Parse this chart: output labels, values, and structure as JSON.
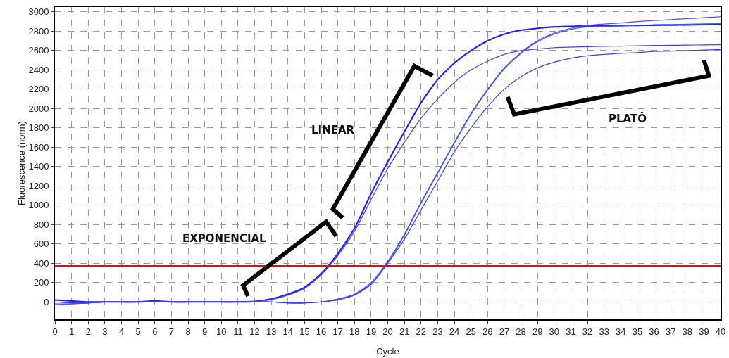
{
  "chart_data": {
    "type": "line",
    "xlabel": "Cycle",
    "ylabel": "Fluorescence (norm)",
    "x": [
      0,
      1,
      2,
      3,
      4,
      5,
      6,
      7,
      8,
      9,
      10,
      11,
      12,
      13,
      14,
      15,
      16,
      17,
      18,
      19,
      20,
      21,
      22,
      23,
      24,
      25,
      26,
      27,
      28,
      29,
      30,
      31,
      32,
      33,
      34,
      35,
      36,
      37,
      38,
      39,
      40
    ],
    "series": [
      {
        "color": "#1f1fff",
        "values": [
          20,
          10,
          0,
          0,
          0,
          0,
          10,
          0,
          0,
          0,
          0,
          0,
          5,
          30,
          80,
          150,
          290,
          500,
          760,
          1120,
          1450,
          1760,
          2060,
          2300,
          2470,
          2600,
          2700,
          2770,
          2810,
          2830,
          2845,
          2850,
          2855,
          2855,
          2858,
          2860,
          2862,
          2864,
          2866,
          2868,
          2870
        ]
      },
      {
        "color": "#4b3cf0",
        "values": [
          0,
          -10,
          -10,
          0,
          0,
          0,
          0,
          0,
          0,
          0,
          0,
          0,
          5,
          25,
          70,
          140,
          280,
          480,
          730,
          1060,
          1380,
          1650,
          1900,
          2100,
          2270,
          2400,
          2490,
          2560,
          2600,
          2615,
          2630,
          2635,
          2640,
          2643,
          2646,
          2650,
          2652,
          2654,
          2656,
          2658,
          2660
        ]
      },
      {
        "color": "#6a3de8",
        "values": [
          -20,
          -20,
          -10,
          0,
          0,
          0,
          0,
          0,
          0,
          0,
          0,
          0,
          0,
          0,
          -10,
          -10,
          0,
          30,
          80,
          200,
          420,
          700,
          1030,
          1340,
          1650,
          1950,
          2200,
          2420,
          2580,
          2700,
          2780,
          2830,
          2860,
          2875,
          2885,
          2900,
          2910,
          2920,
          2930,
          2940,
          2950
        ]
      },
      {
        "color": "#2b5cff",
        "values": [
          -30,
          -20,
          -10,
          0,
          0,
          0,
          0,
          0,
          0,
          0,
          0,
          0,
          0,
          0,
          -10,
          -10,
          0,
          25,
          75,
          190,
          410,
          690,
          1020,
          1330,
          1640,
          1940,
          2190,
          2410,
          2570,
          2690,
          2770,
          2820,
          2845,
          2850,
          2855,
          2860,
          2865,
          2868,
          2872,
          2876,
          2880
        ]
      },
      {
        "color": "#3a3aff",
        "values": [
          0,
          -10,
          -10,
          0,
          0,
          0,
          0,
          0,
          0,
          0,
          0,
          0,
          0,
          0,
          -10,
          -10,
          0,
          20,
          70,
          180,
          400,
          650,
          950,
          1250,
          1550,
          1800,
          2020,
          2200,
          2330,
          2420,
          2480,
          2520,
          2545,
          2560,
          2570,
          2578,
          2590,
          2595,
          2600,
          2605,
          2610
        ]
      }
    ],
    "ref_lines": [
      {
        "axis": "y",
        "value": 370,
        "color": "#ff0000"
      }
    ],
    "annotations": [
      "EXPONENCIAL",
      "LINEAR",
      "PLATÔ"
    ],
    "xlim": [
      0,
      40
    ],
    "xticks": [
      0,
      1,
      2,
      3,
      4,
      5,
      6,
      7,
      8,
      9,
      10,
      11,
      12,
      13,
      14,
      15,
      16,
      17,
      18,
      19,
      20,
      21,
      22,
      23,
      24,
      25,
      26,
      27,
      28,
      29,
      30,
      31,
      32,
      33,
      34,
      35,
      36,
      37,
      38,
      39,
      40
    ],
    "ylim": [
      -180,
      3050
    ],
    "yticks": [
      0,
      200,
      400,
      600,
      800,
      1000,
      1200,
      1400,
      1600,
      1800,
      2000,
      2200,
      2400,
      2600,
      2800,
      3000
    ],
    "grid": true,
    "marker": "none",
    "line_style": "solid"
  }
}
